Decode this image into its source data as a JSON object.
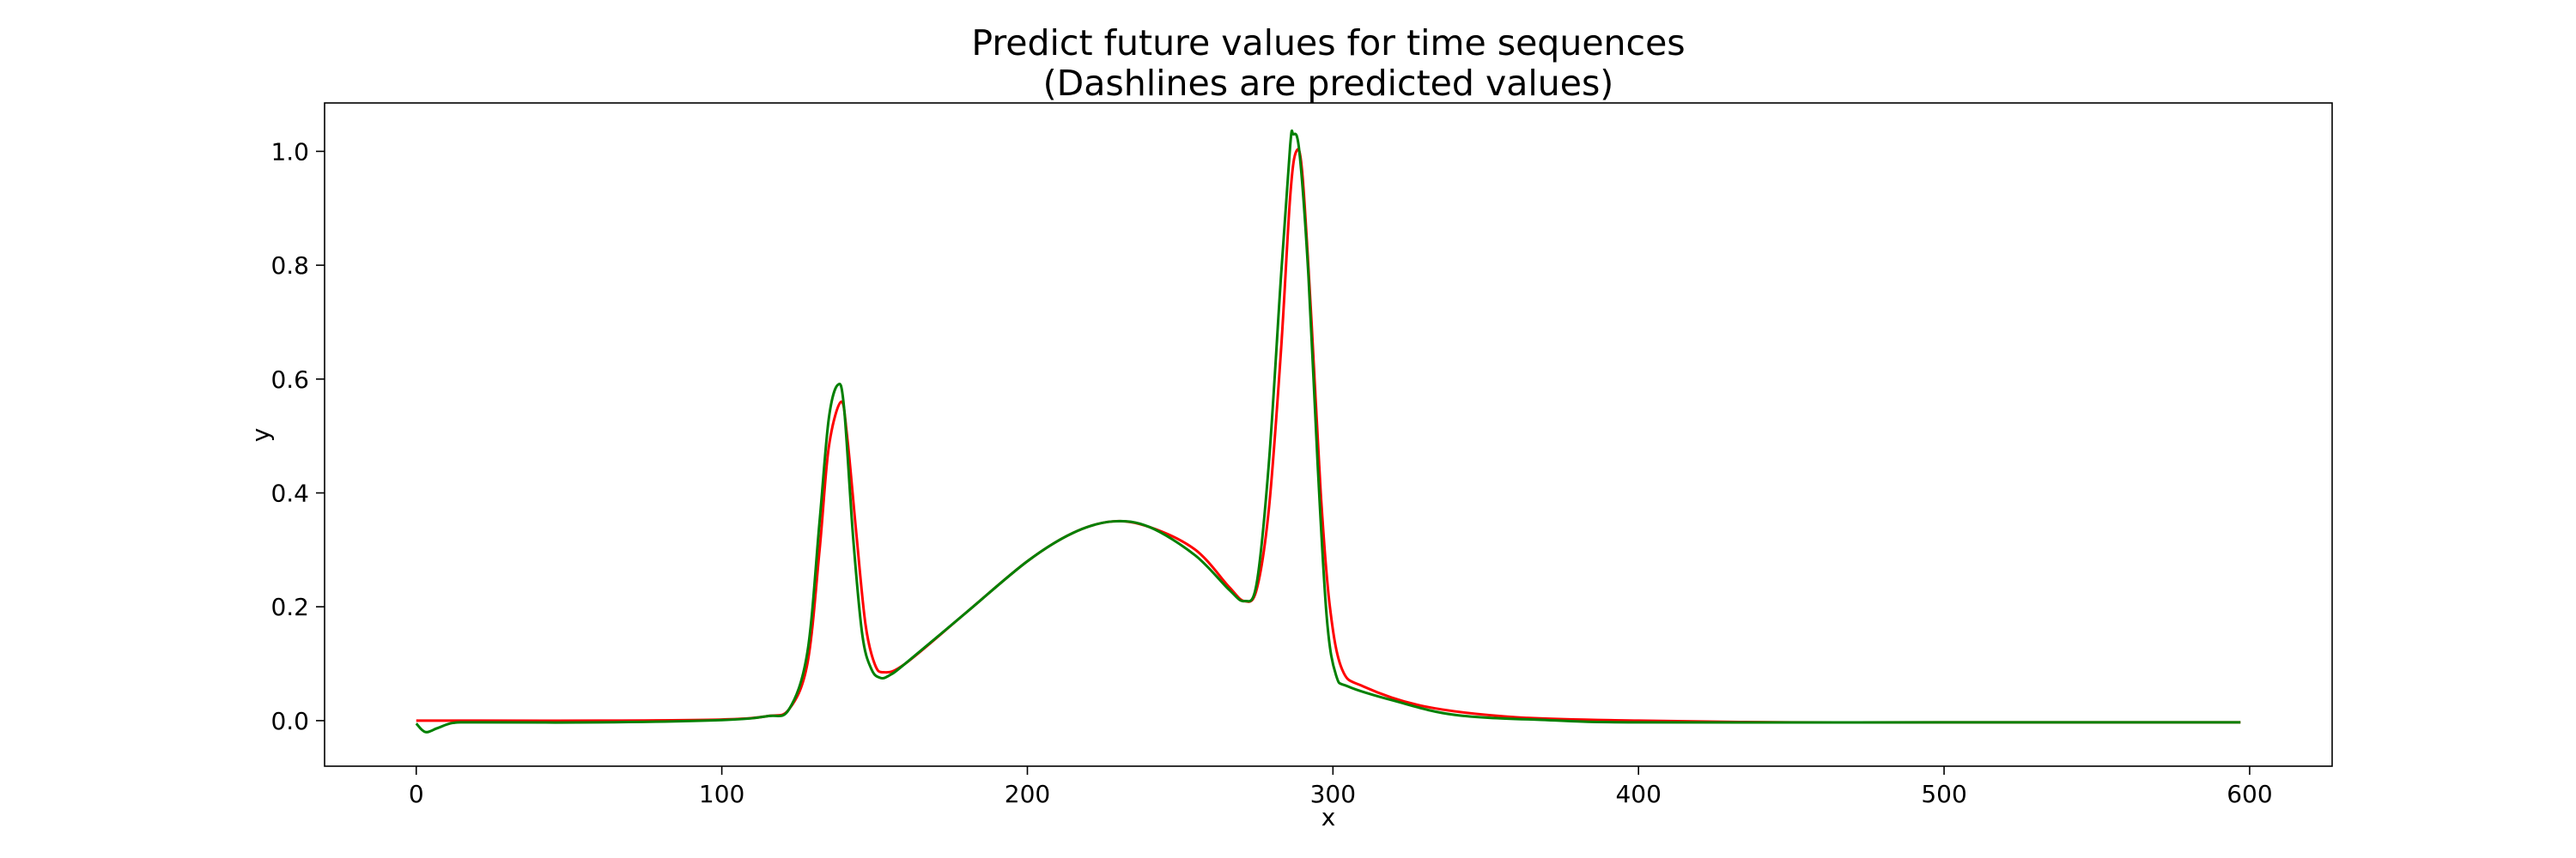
{
  "chart_data": {
    "type": "line",
    "title_line1": "Predict future values for time sequences",
    "title_line2": "(Dashlines are predicted values)",
    "xlabel": "x",
    "ylabel": "y",
    "xlim": [
      -30,
      627
    ],
    "ylim": [
      -0.08,
      1.085
    ],
    "x_ticks": [
      0,
      100,
      200,
      300,
      400,
      500,
      600
    ],
    "x_tick_labels": [
      "0",
      "100",
      "200",
      "300",
      "400",
      "500",
      "600"
    ],
    "y_ticks": [
      0.0,
      0.2,
      0.4,
      0.6,
      0.8,
      1.0
    ],
    "y_tick_labels": [
      "0.0",
      "0.2",
      "0.4",
      "0.6",
      "0.8",
      "1.0"
    ],
    "grid": false,
    "series": [
      {
        "color": "#ff0000",
        "points": [
          [
            0,
            0.0
          ],
          [
            20,
            0.0
          ],
          [
            60,
            0.0
          ],
          [
            100,
            0.002
          ],
          [
            115,
            0.008
          ],
          [
            122,
            0.02
          ],
          [
            128,
            0.1
          ],
          [
            132,
            0.3
          ],
          [
            135,
            0.48
          ],
          [
            139,
            0.56
          ],
          [
            141,
            0.5
          ],
          [
            144,
            0.33
          ],
          [
            147,
            0.17
          ],
          [
            150,
            0.1
          ],
          [
            153,
            0.085
          ],
          [
            160,
            0.1
          ],
          [
            180,
            0.19
          ],
          [
            200,
            0.28
          ],
          [
            215,
            0.33
          ],
          [
            228,
            0.35
          ],
          [
            240,
            0.34
          ],
          [
            255,
            0.3
          ],
          [
            266,
            0.235
          ],
          [
            271,
            0.21
          ],
          [
            275,
            0.23
          ],
          [
            279,
            0.37
          ],
          [
            283,
            0.65
          ],
          [
            286,
            0.92
          ],
          [
            288,
            1.0
          ],
          [
            290,
            0.96
          ],
          [
            293,
            0.7
          ],
          [
            296,
            0.4
          ],
          [
            299,
            0.2
          ],
          [
            303,
            0.09
          ],
          [
            310,
            0.06
          ],
          [
            330,
            0.025
          ],
          [
            360,
            0.006
          ],
          [
            400,
            0.0
          ],
          [
            450,
            -0.003
          ],
          [
            500,
            -0.003
          ],
          [
            597,
            -0.003
          ]
        ]
      },
      {
        "color": "#008000",
        "points": [
          [
            0,
            -0.005
          ],
          [
            3,
            -0.02
          ],
          [
            7,
            -0.013
          ],
          [
            12,
            -0.004
          ],
          [
            20,
            -0.003
          ],
          [
            60,
            -0.003
          ],
          [
            100,
            0.001
          ],
          [
            115,
            0.008
          ],
          [
            122,
            0.02
          ],
          [
            128,
            0.12
          ],
          [
            132,
            0.35
          ],
          [
            135,
            0.53
          ],
          [
            138,
            0.59
          ],
          [
            140,
            0.55
          ],
          [
            143,
            0.32
          ],
          [
            146,
            0.15
          ],
          [
            149,
            0.09
          ],
          [
            152,
            0.075
          ],
          [
            155,
            0.08
          ],
          [
            160,
            0.1
          ],
          [
            180,
            0.19
          ],
          [
            200,
            0.28
          ],
          [
            215,
            0.33
          ],
          [
            228,
            0.35
          ],
          [
            240,
            0.34
          ],
          [
            255,
            0.29
          ],
          [
            266,
            0.23
          ],
          [
            271,
            0.21
          ],
          [
            275,
            0.24
          ],
          [
            279,
            0.45
          ],
          [
            283,
            0.78
          ],
          [
            286,
            1.01
          ],
          [
            287,
            1.03
          ],
          [
            289,
            1.0
          ],
          [
            292,
            0.78
          ],
          [
            295,
            0.45
          ],
          [
            298,
            0.18
          ],
          [
            301,
            0.08
          ],
          [
            305,
            0.06
          ],
          [
            320,
            0.035
          ],
          [
            340,
            0.01
          ],
          [
            370,
            0.001
          ],
          [
            400,
            -0.003
          ],
          [
            500,
            -0.003
          ],
          [
            597,
            -0.003
          ]
        ]
      }
    ]
  }
}
